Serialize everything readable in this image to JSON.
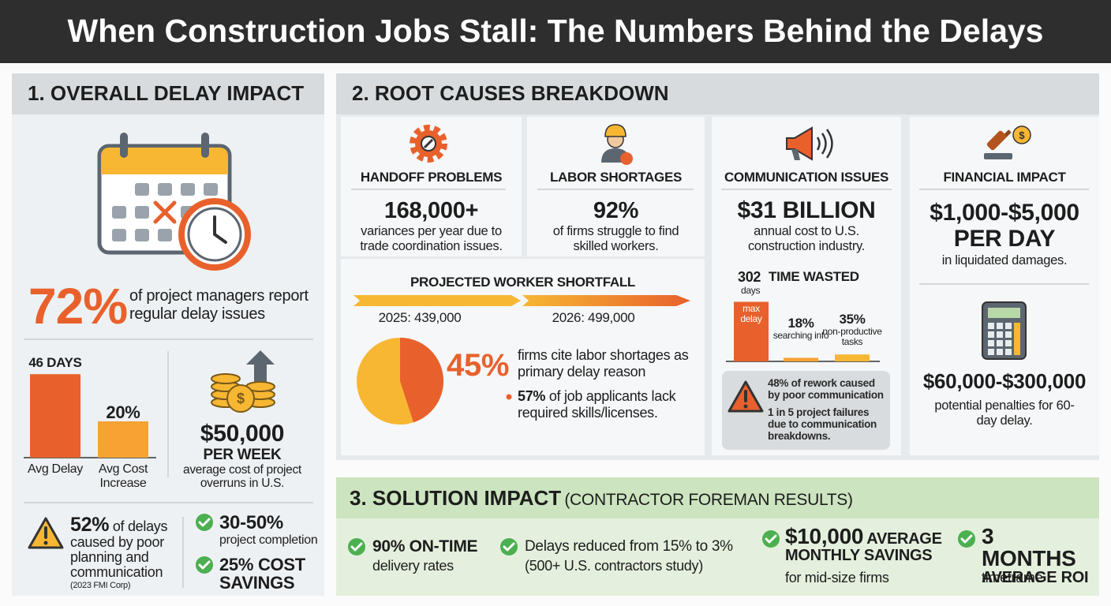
{
  "title": "When Construction Jobs Stall: The Numbers Behind the Delays",
  "overall": {
    "heading": "1. OVERALL DELAY IMPACT",
    "stat": "72%",
    "stat_text": "of project managers report regular delay issues",
    "chart": {
      "type": "bar",
      "categories": [
        "Avg Delay",
        "Avg Cost Increase"
      ],
      "values": [
        46,
        20
      ],
      "value_labels": [
        "46 DAYS",
        "20%"
      ],
      "colors": [
        "#e8612c",
        "#f7a233"
      ]
    },
    "cost": {
      "value": "$50,000",
      "unit": "PER WEEK",
      "text": "average cost of project overruns in U.S."
    },
    "planning": {
      "stat": "52%",
      "text": "of delays caused by poor planning and communication",
      "source": "(2023 FMI Corp)"
    },
    "results": [
      {
        "bold": "30-50%",
        "text": "project completion"
      },
      {
        "bold": "25% COST SAVINGS"
      }
    ]
  },
  "root_causes": {
    "heading": "2. ROOT CAUSES BREAKDOWN",
    "handoff": {
      "title": "HANDOFF PROBLEMS",
      "stat": "168,000+",
      "text": "variances per year due to trade coordination issues."
    },
    "labor": {
      "title": "LABOR SHORTAGES",
      "stat": "92%",
      "text": "of firms struggle to find skilled workers."
    },
    "shortfall": {
      "title": "PROJECTED WORKER SHORTFALL",
      "points": [
        "2025: 439,000",
        "2026: 499,000"
      ]
    },
    "pie": {
      "type": "pie",
      "value": 45,
      "value_label": "45%",
      "text": "firms cite labor shortages as primary delay reason",
      "colors": [
        "#e8612c",
        "#f7b733"
      ]
    },
    "applicants": {
      "stat": "57%",
      "text": "of job applicants lack required skills/licenses."
    },
    "communication": {
      "title": "COMMUNICATION ISSUES",
      "stat": "$31 BILLION",
      "text": "annual cost to U.S. construction industry."
    },
    "time_wasted": {
      "type": "bar",
      "title": "TIME WASTED",
      "unit": "days",
      "categories": [
        "max delay",
        "searching info",
        "non-productive tasks"
      ],
      "values": [
        302,
        18,
        35
      ],
      "value_labels": [
        "302",
        "18%",
        "35%"
      ],
      "colors": [
        "#e8612c",
        "#f7a233",
        "#f7b733"
      ]
    },
    "warnings": [
      "48% of rework caused by poor communication",
      "1 in 5 project failures due to communication breakdowns."
    ],
    "financial": {
      "title": "FINANCIAL IMPACT",
      "stat": "$1,000-$5,000 PER DAY",
      "text": "in liquidated damages.",
      "penalty": "$60,000-$300,000",
      "penalty_text": "potential penalties for 60-day delay."
    }
  },
  "solution": {
    "heading": "3. SOLUTION IMPACT",
    "subheading": "(CONTRACTOR FOREMAN RESULTS)",
    "items": [
      {
        "bold": "90% ON-TIME",
        "text": "delivery rates"
      },
      {
        "text": "Delays reduced from 15% to 3%",
        "note": "(500+ U.S. contractors study)"
      },
      {
        "bold": "$10,000",
        "bold_small": "AVERAGE MONTHLY SAVINGS",
        "text": "for mid-size firms"
      },
      {
        "bold": "3 MONTHS",
        "bold_small": "AVERAGE ROI",
        "text": "timeframe"
      }
    ]
  }
}
